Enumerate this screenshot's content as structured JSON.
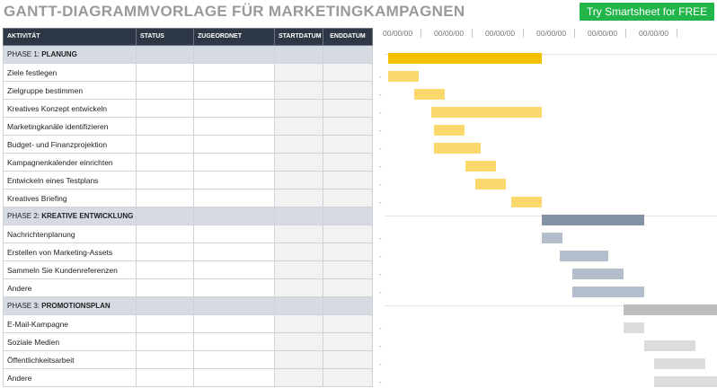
{
  "title": "GANTT-DIAGRAMMVORLAGE FÜR MARKETINGKAMPAGNEN",
  "cta_label": "Try Smartsheet for FREE",
  "columns": [
    "AKTIVITÄT",
    "STATUS",
    "ZUGEORDNET",
    "STARTDATUM",
    "ENDDATUM"
  ],
  "dates": [
    "00/00/00",
    "00/00/00",
    "00/00/00",
    "00/00/00",
    "00/00/00",
    "00/00/00"
  ],
  "dash": "-",
  "colors": {
    "header_bg": "#2e3746",
    "phase_bg": "#d5dae3",
    "phase1_main": "#f2c100",
    "phase1_task": "#fbd86b",
    "phase2_main": "#8492a8",
    "phase2_task": "#b4bdcb",
    "phase3_main": "#bdbdbd",
    "phase3_task": "#dcdcdc",
    "cta": "#22b64a"
  },
  "phases": [
    {
      "label": "PHASE 1: ",
      "name": "PLANUNG",
      "bar": {
        "start": 0.0,
        "end": 3.0
      },
      "tasks": [
        {
          "name": "Ziele festlegen",
          "bar": {
            "start": 0.0,
            "end": 0.6
          }
        },
        {
          "name": "Zielgruppe bestimmen",
          "bar": {
            "start": 0.5,
            "end": 1.1
          }
        },
        {
          "name": "Kreatives Konzept entwickeln",
          "bar": {
            "start": 0.85,
            "end": 3.0
          }
        },
        {
          "name": "Marketingkanäle identifizieren",
          "bar": {
            "start": 0.9,
            "end": 1.5
          }
        },
        {
          "name": "Budget- und Finanzprojektion",
          "bar": {
            "start": 0.9,
            "end": 1.8
          }
        },
        {
          "name": "Kampagnenkalender einrichten",
          "bar": {
            "start": 1.5,
            "end": 2.1
          }
        },
        {
          "name": "Entwickeln eines Testplans",
          "bar": {
            "start": 1.7,
            "end": 2.3
          }
        },
        {
          "name": "Kreatives Briefing",
          "bar": {
            "start": 2.4,
            "end": 3.0
          }
        }
      ]
    },
    {
      "label": "PHASE 2: ",
      "name": "KREATIVE ENTWICKLUNG",
      "bar": {
        "start": 3.0,
        "end": 5.0
      },
      "tasks": [
        {
          "name": "Nachrichtenplanung",
          "bar": {
            "start": 3.0,
            "end": 3.4
          }
        },
        {
          "name": "Erstellen von Marketing-Assets",
          "bar": {
            "start": 3.35,
            "end": 4.3
          }
        },
        {
          "name": "Sammeln Sie Kundenreferenzen",
          "bar": {
            "start": 3.6,
            "end": 4.6
          }
        },
        {
          "name": "Andere",
          "bar": {
            "start": 3.6,
            "end": 5.0
          }
        }
      ]
    },
    {
      "label": "PHASE 3: ",
      "name": "PROMOTIONSPLAN",
      "bar": {
        "start": 4.6,
        "end": 6.6
      },
      "tasks": [
        {
          "name": "E-Mail-Kampagne",
          "bar": {
            "start": 4.6,
            "end": 5.0
          }
        },
        {
          "name": "Soziale Medien",
          "bar": {
            "start": 5.0,
            "end": 6.0
          }
        },
        {
          "name": "Öffentlichkeitsarbeit",
          "bar": {
            "start": 5.2,
            "end": 6.2
          }
        },
        {
          "name": "Andere",
          "bar": {
            "start": 5.2,
            "end": 6.6
          }
        }
      ]
    }
  ]
}
